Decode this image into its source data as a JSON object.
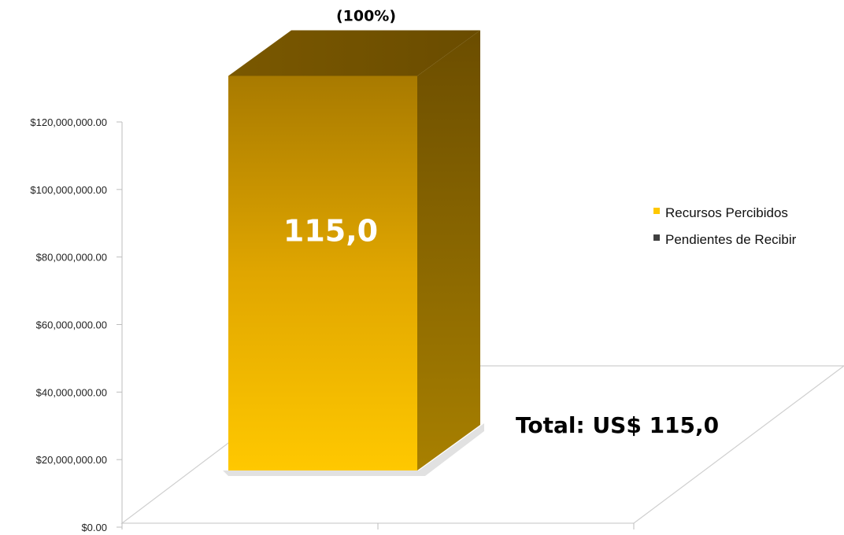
{
  "chart_data": {
    "type": "bar",
    "style": "3d-column",
    "categories": [
      ""
    ],
    "series": [
      {
        "name": "Recursos Percibidos",
        "values": [
          115000000
        ],
        "color": "#ffc800"
      },
      {
        "name": "Pendientes de Recibir",
        "values": [
          0
        ],
        "color": "#404040"
      }
    ],
    "ylim": [
      0,
      120000000
    ],
    "y_ticks": [
      0,
      20000000,
      40000000,
      60000000,
      80000000,
      100000000,
      120000000
    ],
    "y_tick_labels": [
      "$0.00",
      "$20,000,000.00",
      "$40,000,000.00",
      "$60,000,000.00",
      "$80,000,000.00",
      "$100,000,000.00",
      "$120,000,000.00"
    ],
    "bar_data_label": "115,0",
    "top_label": "(100%)",
    "annotation": "Total: US$ 115,0",
    "legend_position": "right",
    "grid": false
  }
}
